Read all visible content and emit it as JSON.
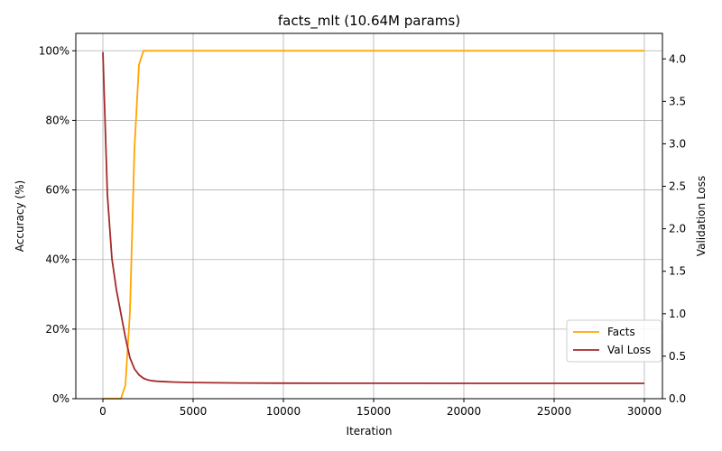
{
  "chart_data": {
    "type": "line",
    "title": "facts_mlt (10.64M params)",
    "xlabel": "Iteration",
    "ylabel_left": "Accuracy (%)",
    "ylabel_right": "Validation Loss",
    "xlim": [
      -1500,
      31000
    ],
    "ylim_left": [
      0,
      105
    ],
    "ylim_right": [
      0,
      4.3
    ],
    "xticks": [
      0,
      5000,
      10000,
      15000,
      20000,
      25000,
      30000
    ],
    "xtick_labels": [
      "0",
      "5000",
      "10000",
      "15000",
      "20000",
      "25000",
      "30000"
    ],
    "yticks_left": [
      0,
      20,
      40,
      60,
      80,
      100
    ],
    "ytick_labels_left": [
      "0%",
      "20%",
      "40%",
      "60%",
      "80%",
      "100%"
    ],
    "yticks_right": [
      0,
      0.5,
      1.0,
      1.5,
      2.0,
      2.5,
      3.0,
      3.5,
      4.0
    ],
    "ytick_labels_right": [
      "0.0",
      "0.5",
      "1.0",
      "1.5",
      "2.0",
      "2.5",
      "3.0",
      "3.5",
      "4.0"
    ],
    "grid": true,
    "legend_position": "lower-right",
    "series": [
      {
        "name": "Facts",
        "axis": "left",
        "color": "#FFA500",
        "x": [
          0,
          250,
          500,
          750,
          1000,
          1250,
          1500,
          1750,
          2000,
          2250,
          2500,
          3000,
          4000,
          5000,
          10000,
          15000,
          20000,
          25000,
          30000
        ],
        "y": [
          0,
          0,
          0,
          0,
          0,
          4,
          25,
          72,
          96,
          100,
          100,
          100,
          100,
          100,
          100,
          100,
          100,
          100,
          100
        ]
      },
      {
        "name": "Val Loss",
        "axis": "right",
        "color": "#A52A2A",
        "x": [
          0,
          250,
          500,
          750,
          1000,
          1250,
          1500,
          1750,
          2000,
          2250,
          2500,
          2750,
          3000,
          3500,
          4000,
          5000,
          7500,
          10000,
          15000,
          20000,
          25000,
          30000
        ],
        "y": [
          4.08,
          2.4,
          1.65,
          1.28,
          1.0,
          0.72,
          0.48,
          0.35,
          0.28,
          0.24,
          0.22,
          0.21,
          0.205,
          0.2,
          0.195,
          0.19,
          0.185,
          0.183,
          0.182,
          0.181,
          0.18,
          0.18
        ]
      }
    ]
  }
}
